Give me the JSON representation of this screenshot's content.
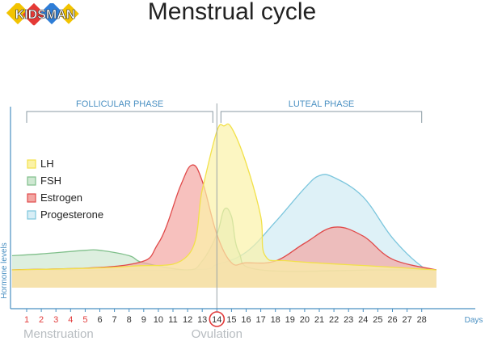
{
  "logo": {
    "wordmark": "KIDSMAN",
    "tagline": "ВСЁ О БЕРЕМЕННОСТИ И ДЕТЯХ",
    "colors": [
      "#f2c300",
      "#e53935",
      "#2e7dd7"
    ]
  },
  "chart_data": {
    "type": "area",
    "title": "Menstrual cycle",
    "ylabel": "Hormone levels",
    "xlabel": "Days",
    "xlim": [
      1,
      29
    ],
    "ylim": [
      0,
      100
    ],
    "days": [
      1,
      2,
      3,
      4,
      5,
      6,
      7,
      8,
      9,
      10,
      11,
      12,
      13,
      14,
      15,
      16,
      17,
      18,
      19,
      20,
      21,
      22,
      23,
      24,
      25,
      26,
      27,
      28
    ],
    "highlight_days": [
      1,
      2,
      3,
      4,
      5
    ],
    "marked_day": 14,
    "phases": [
      {
        "label": "FOLLICULAR PHASE",
        "start": 1,
        "end": 14
      },
      {
        "label": "LUTEAL PHASE",
        "start": 14,
        "end": 28
      }
    ],
    "annotations": {
      "menstruation": "Menstruation",
      "ovulation": "Ovulation"
    },
    "legend_position": "top-left",
    "series": [
      {
        "name": "LH",
        "color": "#f2e14a",
        "fill": "#fbf2a8",
        "points": [
          [
            0,
            10
          ],
          [
            8,
            12
          ],
          [
            12,
            18
          ],
          [
            13,
            55
          ],
          [
            14,
            88
          ],
          [
            14.5,
            91
          ],
          [
            15,
            90
          ],
          [
            16,
            70
          ],
          [
            17,
            40
          ],
          [
            17.3,
            18
          ],
          [
            19,
            15
          ],
          [
            25,
            12
          ],
          [
            29,
            10
          ]
        ]
      },
      {
        "name": "FSH",
        "color": "#7fbf8a",
        "fill": "#cfe8d2",
        "points": [
          [
            0,
            18
          ],
          [
            2,
            19
          ],
          [
            5,
            21
          ],
          [
            6,
            21
          ],
          [
            8,
            18
          ],
          [
            9,
            14
          ],
          [
            12,
            10
          ],
          [
            13,
            15
          ],
          [
            14,
            30
          ],
          [
            14.5,
            44
          ],
          [
            15,
            40
          ],
          [
            15.5,
            20
          ],
          [
            17,
            10
          ],
          [
            25,
            10
          ],
          [
            29,
            10
          ]
        ]
      },
      {
        "name": "Estrogen",
        "color": "#e04a4a",
        "fill": "#f3a7a3",
        "points": [
          [
            0,
            10
          ],
          [
            8,
            13
          ],
          [
            10,
            25
          ],
          [
            11.5,
            57
          ],
          [
            12.3,
            69
          ],
          [
            13,
            60
          ],
          [
            14,
            30
          ],
          [
            15,
            14
          ],
          [
            16,
            14
          ],
          [
            18,
            15
          ],
          [
            20,
            25
          ],
          [
            22,
            34
          ],
          [
            24,
            29
          ],
          [
            26,
            16
          ],
          [
            29,
            10
          ]
        ]
      },
      {
        "name": "Progesterone",
        "color": "#7cc6dd",
        "fill": "#d8eef6",
        "points": [
          [
            0,
            10
          ],
          [
            12,
            10
          ],
          [
            14,
            13
          ],
          [
            16,
            20
          ],
          [
            18,
            37
          ],
          [
            20,
            56
          ],
          [
            21,
            63
          ],
          [
            22,
            62
          ],
          [
            24,
            51
          ],
          [
            26,
            28
          ],
          [
            28,
            12
          ],
          [
            29,
            10
          ]
        ]
      }
    ]
  }
}
